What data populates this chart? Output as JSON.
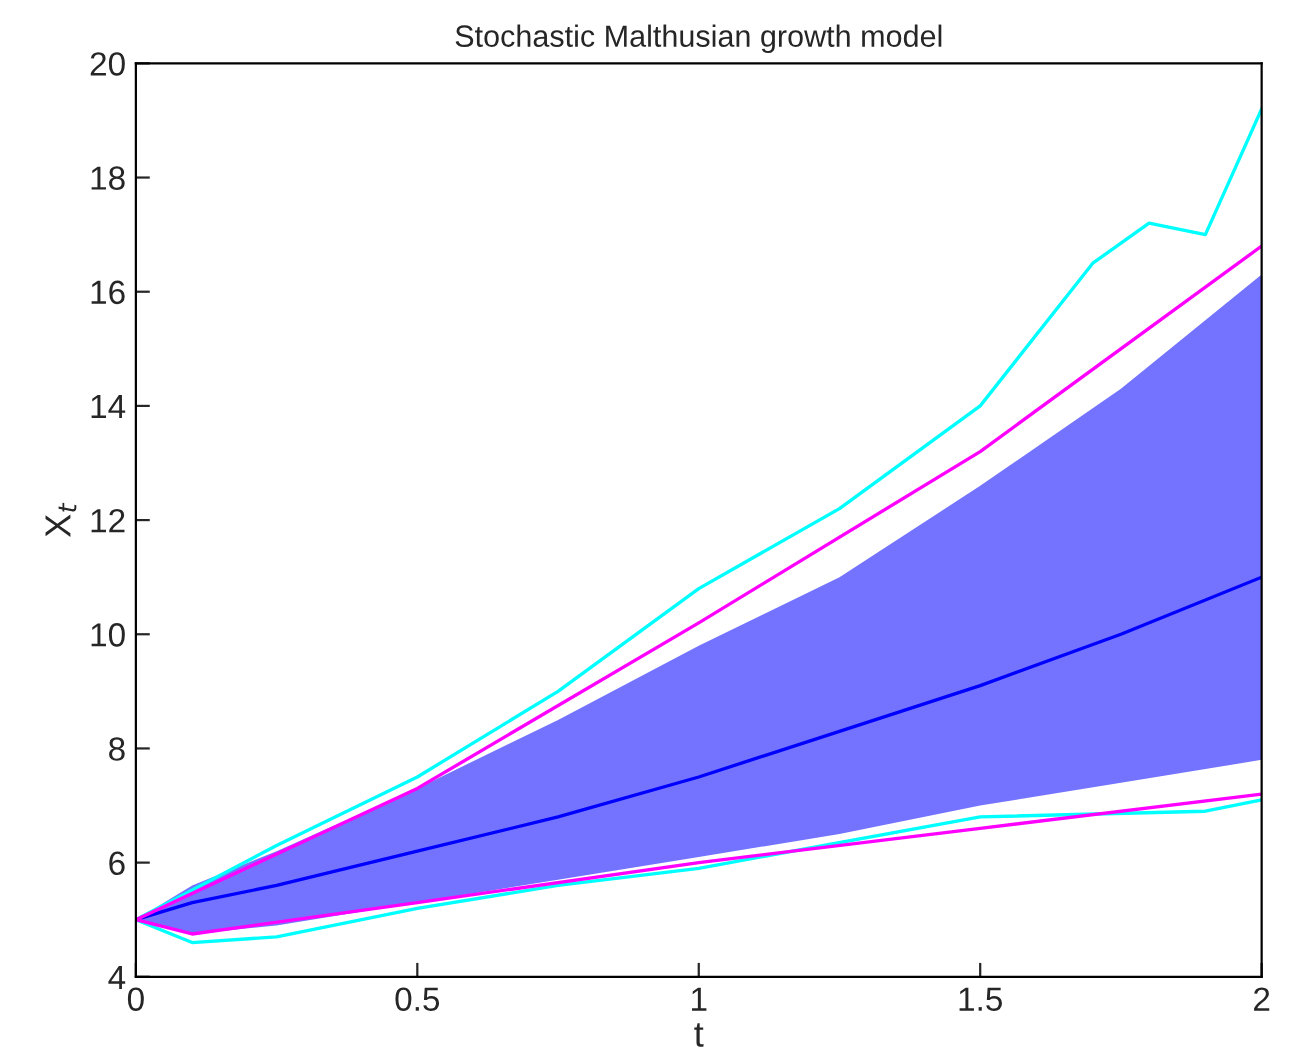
{
  "chart_data": {
    "type": "line",
    "title": "Stochastic Malthusian growth model",
    "xlabel": "t",
    "ylabel": "X$_{t}$",
    "x": [
      0,
      0.1,
      0.25,
      0.5,
      0.75,
      1,
      1.25,
      1.5,
      1.75,
      2
    ],
    "series": [
      {
        "color": "#0000ff",
        "values": [
          5,
          5.3,
          5.6,
          6.2,
          6.8,
          7.5,
          8.3,
          9.1,
          10.0,
          11.0
        ],
        "lower": [
          5,
          4.75,
          4.9,
          5.3,
          5.7,
          6.1,
          6.5,
          7.0,
          7.4,
          7.8
        ],
        "upper": [
          5,
          5.6,
          6.2,
          7.3,
          8.5,
          9.8,
          11,
          12.6,
          14.3,
          16.3
        ]
      },
      {
        "color": "#00ffff",
        "x": [
          0,
          0.25,
          0.5,
          0.75,
          1,
          1.25,
          1.5,
          1.7,
          1.8,
          1.9,
          2
        ],
        "values": [
          5,
          6.3,
          7.5,
          9,
          10.8,
          12.2,
          14,
          16.5,
          17.2,
          17.0,
          19.2
        ]
      },
      {
        "color": "#00ffff",
        "x": [
          0,
          0.1,
          0.25,
          0.5,
          0.75,
          1,
          1.5,
          1.9,
          2
        ],
        "values": [
          5,
          4.6,
          4.7,
          5.2,
          5.6,
          5.9,
          6.8,
          6.9,
          7.1
        ]
      },
      {
        "color": "#ff00ff",
        "x": [
          0,
          0.5,
          1,
          1.5,
          2
        ],
        "values": [
          5,
          7.3,
          10.2,
          13.2,
          16.8
        ]
      },
      {
        "color": "#ff00ff",
        "x": [
          0,
          0.1,
          0.5,
          1,
          1.5,
          2
        ],
        "values": [
          5,
          4.75,
          5.3,
          6.0,
          6.6,
          7.2
        ]
      }
    ],
    "xlim": [
      0,
      2
    ],
    "ylim": [
      4,
      20
    ],
    "xticks": [
      0,
      0.5,
      1,
      1.5,
      2
    ],
    "yticks": [
      4,
      6,
      8,
      10,
      12,
      14,
      16,
      18,
      20
    ],
    "grid": false
  }
}
